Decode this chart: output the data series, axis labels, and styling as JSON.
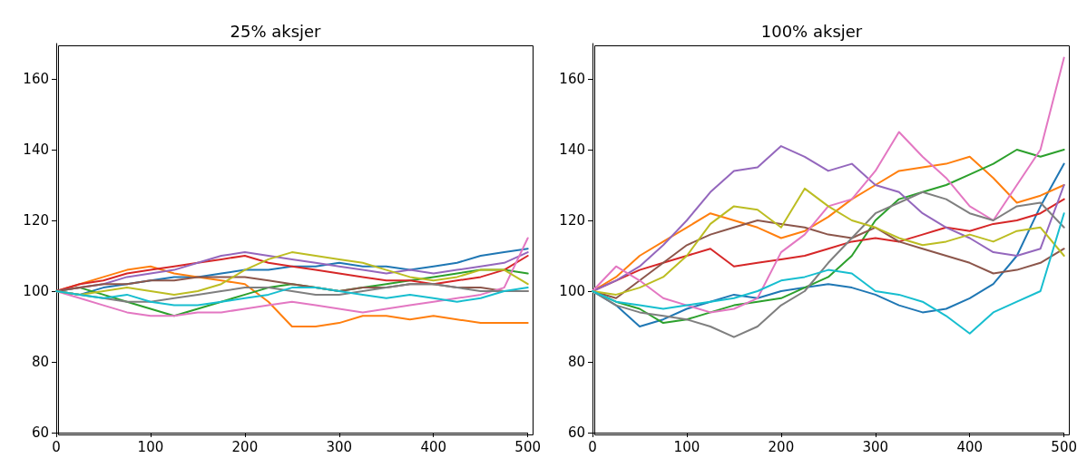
{
  "chart_data": [
    {
      "type": "line",
      "title": "25% aksjer",
      "x": [
        0,
        25,
        50,
        75,
        100,
        125,
        150,
        175,
        200,
        225,
        250,
        275,
        300,
        325,
        350,
        375,
        400,
        425,
        450,
        475,
        500
      ],
      "xlim": [
        0,
        500
      ],
      "xticks": [
        0,
        100,
        200,
        300,
        400,
        500
      ],
      "ylim": [
        60,
        170
      ],
      "yticks": [
        60,
        80,
        100,
        120,
        140,
        160
      ],
      "grid": false,
      "marker": "none",
      "line_style": "solid",
      "series": [
        {
          "color": "#1f77b4",
          "values": [
            100,
            99,
            101,
            102,
            103,
            104,
            104,
            105,
            106,
            106,
            107,
            107,
            108,
            107,
            107,
            106,
            107,
            108,
            110,
            111,
            112
          ]
        },
        {
          "color": "#ff7f0e",
          "values": [
            100,
            102,
            104,
            106,
            107,
            105,
            104,
            103,
            102,
            97,
            90,
            90,
            91,
            93,
            93,
            92,
            93,
            92,
            91,
            91,
            91
          ]
        },
        {
          "color": "#2ca02c",
          "values": [
            100,
            101,
            99,
            97,
            95,
            93,
            95,
            97,
            99,
            101,
            102,
            101,
            100,
            101,
            102,
            103,
            104,
            105,
            106,
            106,
            105
          ]
        },
        {
          "color": "#d62728",
          "values": [
            100,
            102,
            103,
            105,
            106,
            107,
            108,
            109,
            110,
            108,
            107,
            106,
            105,
            104,
            103,
            103,
            102,
            103,
            104,
            106,
            110
          ]
        },
        {
          "color": "#9467bd",
          "values": [
            100,
            101,
            102,
            104,
            105,
            106,
            108,
            110,
            111,
            110,
            109,
            108,
            107,
            106,
            105,
            106,
            105,
            106,
            107,
            108,
            111
          ]
        },
        {
          "color": "#8c564b",
          "values": [
            100,
            101,
            102,
            102,
            103,
            103,
            104,
            104,
            104,
            103,
            102,
            101,
            100,
            101,
            101,
            102,
            102,
            101,
            101,
            100,
            100
          ]
        },
        {
          "color": "#e377c2",
          "values": [
            100,
            98,
            96,
            94,
            93,
            93,
            94,
            94,
            95,
            96,
            97,
            96,
            95,
            94,
            95,
            96,
            97,
            98,
            99,
            101,
            115
          ]
        },
        {
          "color": "#7f7f7f",
          "values": [
            100,
            99,
            98,
            97,
            97,
            98,
            99,
            100,
            101,
            101,
            100,
            99,
            99,
            100,
            101,
            102,
            102,
            101,
            100,
            100,
            100
          ]
        },
        {
          "color": "#bcbd22",
          "values": [
            100,
            99,
            100,
            101,
            100,
            99,
            100,
            102,
            106,
            109,
            111,
            110,
            109,
            108,
            106,
            104,
            103,
            104,
            106,
            106,
            102
          ]
        },
        {
          "color": "#17becf",
          "values": [
            100,
            99,
            98,
            99,
            97,
            96,
            96,
            97,
            98,
            99,
            101,
            101,
            100,
            99,
            98,
            99,
            98,
            97,
            98,
            100,
            101
          ]
        }
      ]
    },
    {
      "type": "line",
      "title": "100% aksjer",
      "x": [
        0,
        25,
        50,
        75,
        100,
        125,
        150,
        175,
        200,
        225,
        250,
        275,
        300,
        325,
        350,
        375,
        400,
        425,
        450,
        475,
        500
      ],
      "xlim": [
        0,
        500
      ],
      "xticks": [
        0,
        100,
        200,
        300,
        400,
        500
      ],
      "ylim": [
        60,
        170
      ],
      "yticks": [
        60,
        80,
        100,
        120,
        140,
        160
      ],
      "grid": false,
      "marker": "none",
      "line_style": "solid",
      "series": [
        {
          "color": "#1f77b4",
          "values": [
            100,
            96,
            90,
            92,
            95,
            97,
            99,
            98,
            100,
            101,
            102,
            101,
            99,
            96,
            94,
            95,
            98,
            102,
            110,
            124,
            136
          ]
        },
        {
          "color": "#ff7f0e",
          "values": [
            100,
            104,
            110,
            114,
            118,
            122,
            120,
            118,
            115,
            117,
            121,
            126,
            130,
            134,
            135,
            136,
            138,
            132,
            125,
            127,
            130
          ]
        },
        {
          "color": "#2ca02c",
          "values": [
            100,
            97,
            95,
            91,
            92,
            94,
            96,
            97,
            98,
            101,
            104,
            110,
            120,
            126,
            128,
            130,
            133,
            136,
            140,
            138,
            140
          ]
        },
        {
          "color": "#d62728",
          "values": [
            100,
            103,
            106,
            108,
            110,
            112,
            107,
            108,
            109,
            110,
            112,
            114,
            115,
            114,
            116,
            118,
            117,
            119,
            120,
            122,
            126
          ]
        },
        {
          "color": "#9467bd",
          "values": [
            100,
            103,
            107,
            113,
            120,
            128,
            134,
            135,
            141,
            138,
            134,
            136,
            130,
            128,
            122,
            118,
            115,
            111,
            110,
            112,
            130
          ]
        },
        {
          "color": "#8c564b",
          "values": [
            100,
            98,
            103,
            108,
            113,
            116,
            118,
            120,
            119,
            118,
            116,
            115,
            118,
            114,
            112,
            110,
            108,
            105,
            106,
            108,
            112
          ]
        },
        {
          "color": "#e377c2",
          "values": [
            100,
            107,
            103,
            98,
            96,
            94,
            95,
            98,
            111,
            116,
            124,
            126,
            134,
            145,
            138,
            132,
            124,
            120,
            130,
            140,
            166
          ]
        },
        {
          "color": "#7f7f7f",
          "values": [
            100,
            96,
            94,
            93,
            92,
            90,
            87,
            90,
            96,
            100,
            108,
            115,
            122,
            125,
            128,
            126,
            122,
            120,
            124,
            125,
            118
          ]
        },
        {
          "color": "#bcbd22",
          "values": [
            100,
            99,
            101,
            104,
            110,
            119,
            124,
            123,
            118,
            129,
            124,
            120,
            118,
            115,
            113,
            114,
            116,
            114,
            117,
            118,
            110
          ]
        },
        {
          "color": "#17becf",
          "values": [
            100,
            97,
            96,
            95,
            96,
            97,
            98,
            100,
            103,
            104,
            106,
            105,
            100,
            99,
            97,
            93,
            88,
            94,
            97,
            100,
            122
          ]
        }
      ]
    }
  ]
}
